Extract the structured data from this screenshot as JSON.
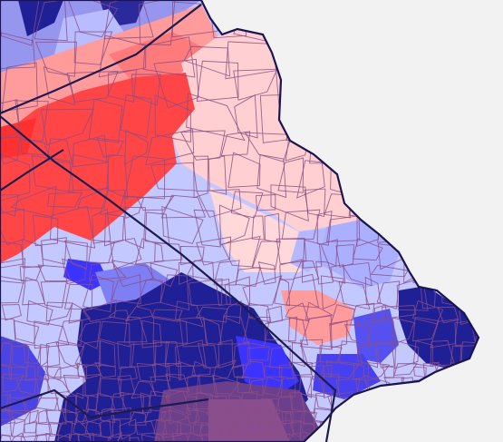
{
  "map": {
    "title": "",
    "legend": [],
    "colors": {
      "water": "#f2f2f2",
      "lean_r_light": "#ffcfd1",
      "lean_r": "#ff9b9b",
      "strong_r": "#ff4040",
      "lean_d_light": "#c3c8ff",
      "lean_d": "#8c8cff",
      "strong_d": "#3b33ff",
      "safe_d": "#1f1f96",
      "boundary": "#8b4f86",
      "district_line": "#1d1b4f"
    }
  }
}
